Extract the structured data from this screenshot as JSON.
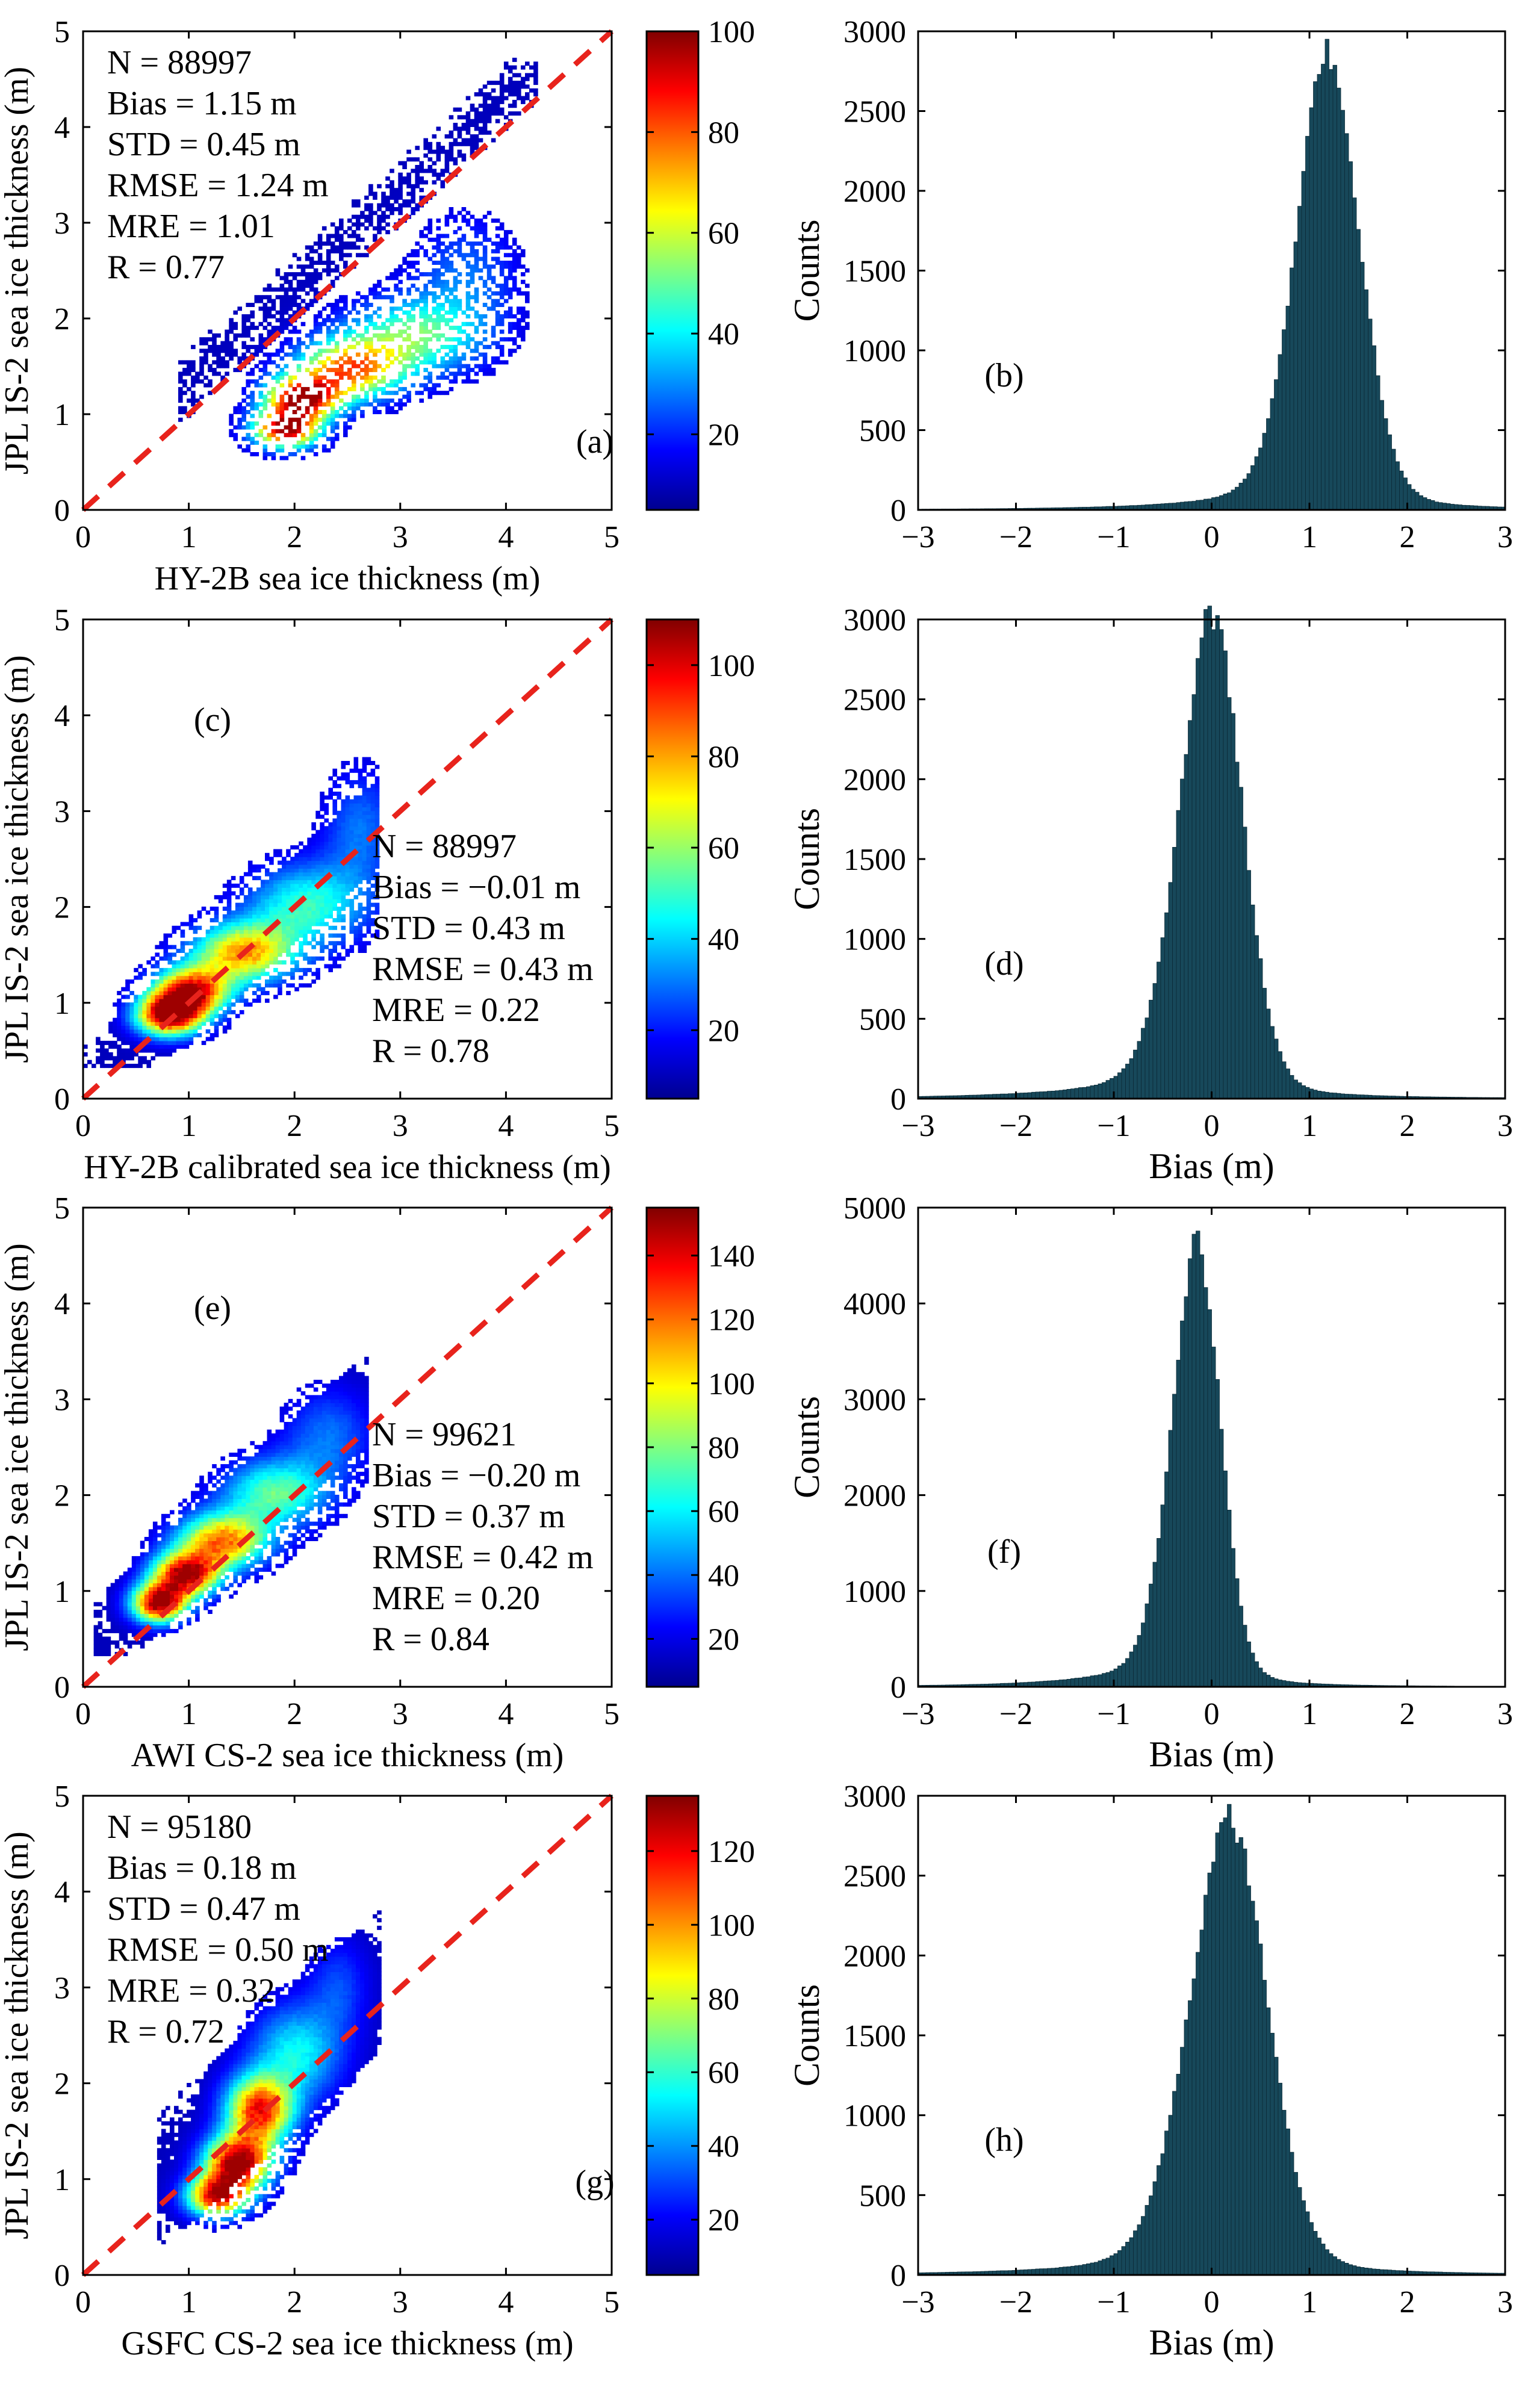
{
  "figure": {
    "title": ""
  },
  "colormap": [
    "#00008f",
    "#0000ff",
    "#0080ff",
    "#00ffff",
    "#80ff80",
    "#ffff00",
    "#ff8000",
    "#ff0000",
    "#800000"
  ],
  "histogram_bar_color": "#17485a",
  "one_to_one_line_color": "#e8231c",
  "chart_data": [
    {
      "type": "heatmap",
      "panel": "(a)",
      "xlabel": "HY-2B sea ice thickness (m)",
      "ylabel": "JPL IS-2 sea ice thickness (m)",
      "xlim": [
        0,
        5
      ],
      "ylim": [
        0,
        5
      ],
      "xticks": [
        0,
        1,
        2,
        3,
        4,
        5
      ],
      "yticks": [
        0,
        1,
        2,
        3,
        4,
        5
      ],
      "one_to_one_line": true,
      "stats": [
        "N = 88997",
        "Bias = 1.15 m",
        "STD = 0.45 m",
        "RMSE = 1.24 m",
        "MRE = 1.01",
        "R = 0.77"
      ],
      "stats_position": "top-left",
      "colorbar": {
        "min": 5,
        "max": 100,
        "ticks": [
          20,
          40,
          60,
          80,
          100
        ]
      },
      "density_centers": [
        [
          1.9,
          0.82,
          0.22,
          0.14,
          1.0
        ],
        [
          2.05,
          1.15,
          0.25,
          0.16,
          0.95
        ],
        [
          2.5,
          1.45,
          0.35,
          0.22,
          0.75
        ],
        [
          3.1,
          1.8,
          0.45,
          0.28,
          0.45
        ],
        [
          3.6,
          2.4,
          0.35,
          0.45,
          0.2
        ]
      ],
      "density_extent": {
        "xmin": 0.9,
        "xmax": 4.3,
        "low": -0.05,
        "high": 0.7
      },
      "grid": false
    },
    {
      "type": "bar",
      "panel": "(b)",
      "xlabel": "",
      "ylabel": "Counts",
      "xlim": [
        -3,
        3
      ],
      "ylim": [
        0,
        3000
      ],
      "xticks": [
        -3,
        -2,
        -1,
        0,
        1,
        2,
        3
      ],
      "yticks": [
        0,
        500,
        1000,
        1500,
        2000,
        2500,
        3000
      ],
      "bin_width": 0.04,
      "peak_bias": 1.2,
      "peak_count": 2780,
      "spread_left": 0.33,
      "spread_right": 0.32,
      "tail_left": 0.9,
      "tail_amp": 0.04,
      "grid": false
    },
    {
      "type": "heatmap",
      "panel": "(c)",
      "xlabel": "HY-2B calibrated sea ice thickness (m)",
      "ylabel": "JPL IS-2 sea ice thickness (m)",
      "xlim": [
        0,
        5
      ],
      "ylim": [
        0,
        5
      ],
      "xticks": [
        0,
        1,
        2,
        3,
        4,
        5
      ],
      "yticks": [
        0,
        1,
        2,
        3,
        4,
        5
      ],
      "one_to_one_line": true,
      "stats": [
        "N = 88997",
        "Bias = −0.01 m",
        "STD = 0.43 m",
        "RMSE = 0.43 m",
        "MRE = 0.22",
        "R = 0.78"
      ],
      "stats_position": "center-right",
      "colorbar": {
        "min": 5,
        "max": 110,
        "ticks": [
          20,
          40,
          60,
          80,
          100
        ]
      },
      "density_centers": [
        [
          0.8,
          0.85,
          0.22,
          0.15,
          1.0
        ],
        [
          1.0,
          1.1,
          0.25,
          0.17,
          0.9
        ],
        [
          1.5,
          1.5,
          0.35,
          0.22,
          0.7
        ],
        [
          2.1,
          2.0,
          0.4,
          0.3,
          0.4
        ],
        [
          2.6,
          2.8,
          0.25,
          0.45,
          0.2
        ]
      ],
      "density_extent": {
        "xmin": 0.0,
        "xmax": 2.8,
        "low": -0.4,
        "high": 0.55
      },
      "grid": false
    },
    {
      "type": "bar",
      "panel": "(d)",
      "xlabel": "Bias (m)",
      "ylabel": "Counts",
      "xlim": [
        -3,
        3
      ],
      "ylim": [
        0,
        3000
      ],
      "xticks": [
        -3,
        -2,
        -1,
        0,
        1,
        2,
        3
      ],
      "yticks": [
        0,
        500,
        1000,
        1500,
        2000,
        2500,
        3000
      ],
      "bin_width": 0.04,
      "peak_bias": 0.02,
      "peak_count": 2980,
      "spread_left": 0.34,
      "spread_right": 0.3,
      "tail_left": 1.0,
      "tail_amp": 0.04,
      "grid": false
    },
    {
      "type": "heatmap",
      "panel": "(e)",
      "xlabel": "AWI CS-2 sea ice thickness (m)",
      "ylabel": "JPL IS-2 sea ice thickness (m)",
      "xlim": [
        0,
        5
      ],
      "ylim": [
        0,
        5
      ],
      "xticks": [
        0,
        1,
        2,
        3,
        4,
        5
      ],
      "yticks": [
        0,
        1,
        2,
        3,
        4,
        5
      ],
      "one_to_one_line": true,
      "stats": [
        "N = 99621",
        "Bias = −0.20 m",
        "STD = 0.37 m",
        "RMSE = 0.42 m",
        "MRE = 0.20",
        "R = 0.84"
      ],
      "stats_position": "center-right",
      "colorbar": {
        "min": 5,
        "max": 155,
        "ticks": [
          20,
          40,
          60,
          80,
          100,
          120,
          140
        ]
      },
      "density_centers": [
        [
          0.7,
          0.85,
          0.18,
          0.14,
          1.0
        ],
        [
          0.95,
          1.15,
          0.22,
          0.16,
          0.95
        ],
        [
          1.3,
          1.5,
          0.3,
          0.2,
          0.75
        ],
        [
          1.8,
          2.0,
          0.35,
          0.25,
          0.45
        ],
        [
          2.3,
          2.6,
          0.3,
          0.35,
          0.2
        ]
      ],
      "density_extent": {
        "xmin": 0.1,
        "xmax": 2.7,
        "low": -0.15,
        "high": 0.8
      },
      "grid": false
    },
    {
      "type": "bar",
      "panel": "(f)",
      "xlabel": "Bias (m)",
      "ylabel": "Counts",
      "xlim": [
        -3,
        3
      ],
      "ylim": [
        0,
        5000
      ],
      "xticks": [
        -3,
        -2,
        -1,
        0,
        1,
        2,
        3
      ],
      "yticks": [
        0,
        1000,
        2000,
        3000,
        4000,
        5000
      ],
      "bin_width": 0.04,
      "peak_bias": -0.13,
      "peak_count": 4480,
      "spread_left": 0.27,
      "spread_right": 0.23,
      "tail_left": 0.8,
      "tail_amp": 0.05,
      "grid": false
    },
    {
      "type": "heatmap",
      "panel": "(g)",
      "xlabel": "GSFC CS-2 sea ice thickness (m)",
      "ylabel": "JPL IS-2 sea ice thickness (m)",
      "xlim": [
        0,
        5
      ],
      "ylim": [
        0,
        5
      ],
      "xticks": [
        0,
        1,
        2,
        3,
        4,
        5
      ],
      "yticks": [
        0,
        1,
        2,
        3,
        4,
        5
      ],
      "one_to_one_line": true,
      "stats": [
        "N = 95180",
        "Bias = 0.18 m",
        "STD = 0.47 m",
        "RMSE = 0.50 m",
        "MRE = 0.32",
        "R = 0.72"
      ],
      "stats_position": "top-left",
      "colorbar": {
        "min": 5,
        "max": 135,
        "ticks": [
          20,
          40,
          60,
          80,
          100,
          120
        ]
      },
      "density_centers": [
        [
          1.25,
          0.8,
          0.2,
          0.15,
          0.9
        ],
        [
          1.45,
          1.15,
          0.22,
          0.2,
          1.0
        ],
        [
          1.65,
          1.7,
          0.22,
          0.25,
          0.85
        ],
        [
          2.0,
          2.3,
          0.3,
          0.35,
          0.35
        ],
        [
          2.4,
          3.0,
          0.2,
          0.35,
          0.15
        ]
      ],
      "density_extent": {
        "xmin": 0.7,
        "xmax": 2.8,
        "low": -0.5,
        "high": 1.0
      },
      "grid": false
    },
    {
      "type": "bar",
      "panel": "(h)",
      "xlabel": "Bias (m)",
      "ylabel": "Counts",
      "xlim": [
        -3,
        3
      ],
      "ylim": [
        0,
        3000
      ],
      "xticks": [
        -3,
        -2,
        -1,
        0,
        1,
        2,
        3
      ],
      "yticks": [
        0,
        500,
        1000,
        1500,
        2000,
        2500,
        3000
      ],
      "bin_width": 0.04,
      "peak_bias": 0.2,
      "peak_count": 2800,
      "spread_left": 0.42,
      "spread_right": 0.38,
      "tail_left": 1.0,
      "tail_amp": 0.03,
      "grid": false
    }
  ]
}
